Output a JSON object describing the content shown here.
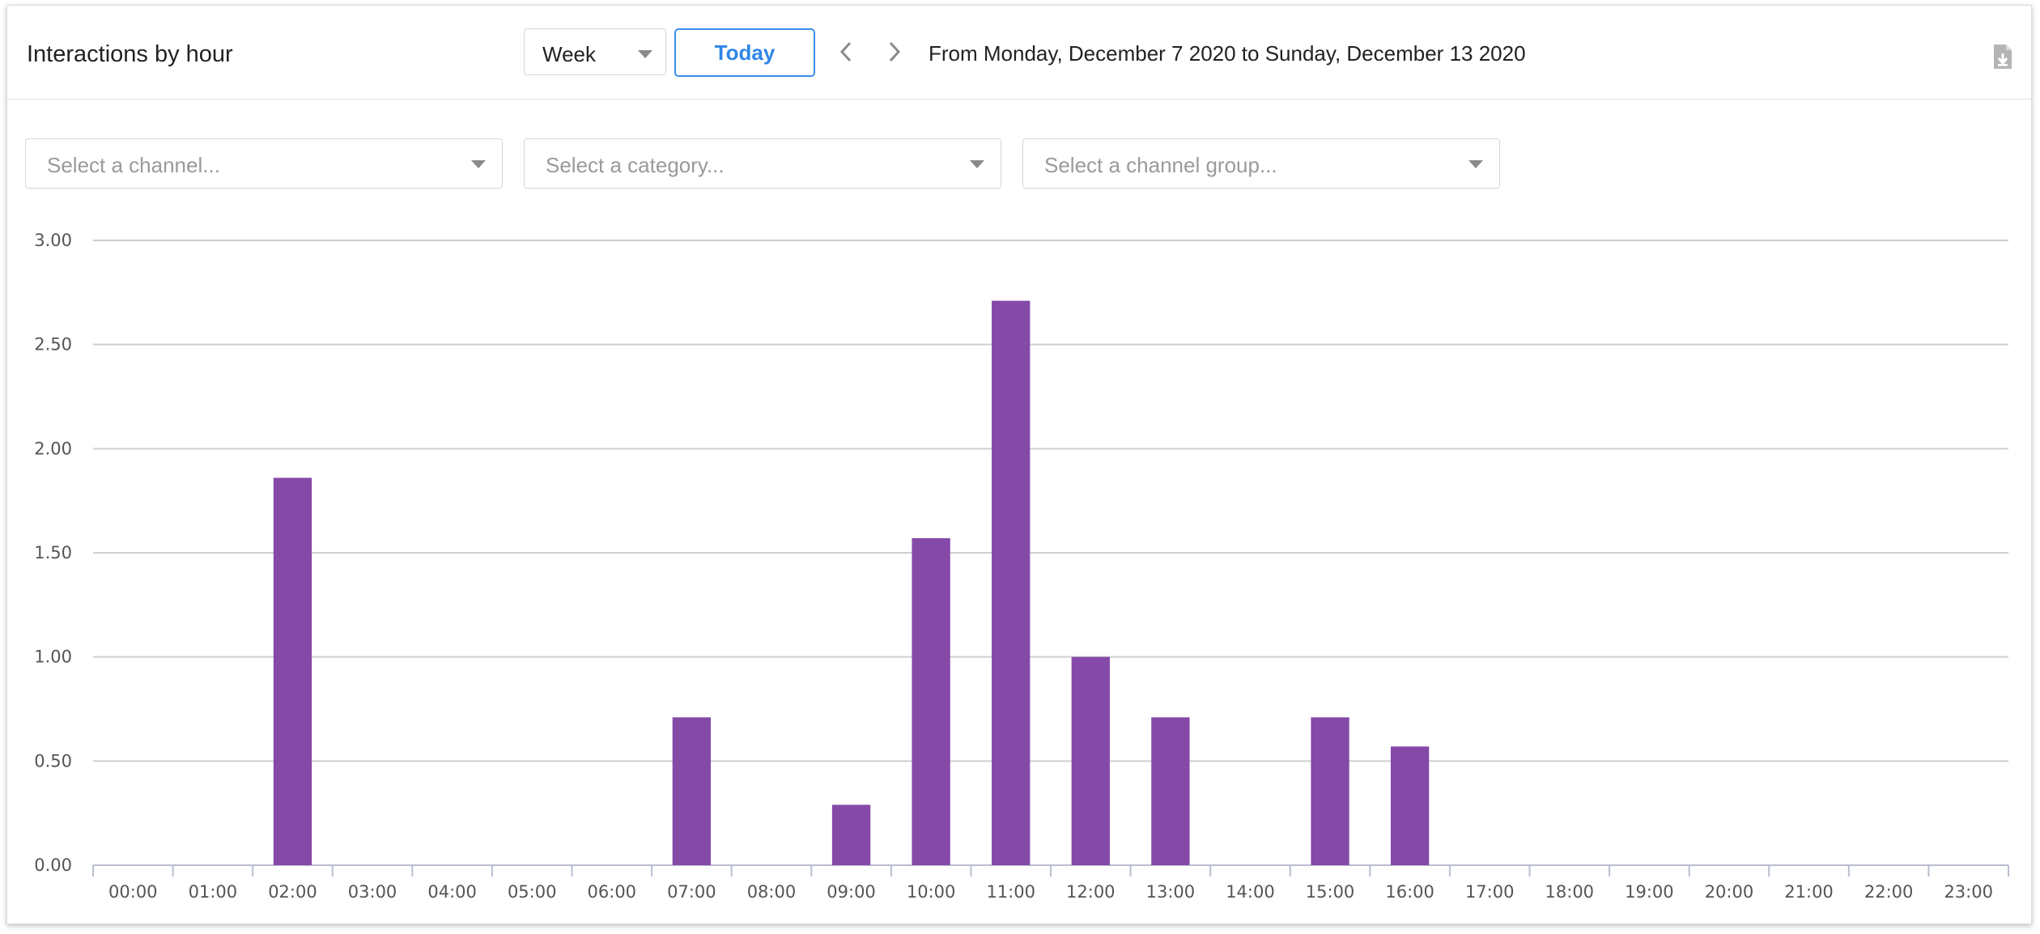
{
  "header": {
    "title": "Interactions by hour",
    "period_value": "Week",
    "today_label": "Today",
    "range_text": "From Monday, December 7 2020 to Sunday, December 13 2020",
    "icons": {
      "prev": "chevron-left-icon",
      "next": "chevron-right-icon",
      "export": "file-download-icon"
    }
  },
  "filters": {
    "channel_placeholder": "Select a channel...",
    "category_placeholder": "Select a category...",
    "channel_group_placeholder": "Select a channel group..."
  },
  "colors": {
    "bar": "#8549a8",
    "accent": "#2f86e6",
    "grid": "#cfcfcf"
  },
  "chart_data": {
    "type": "bar",
    "title": "",
    "xlabel": "",
    "ylabel": "",
    "ylim": [
      0,
      3
    ],
    "yticks": [
      "0.00",
      "0.50",
      "1.00",
      "1.50",
      "2.00",
      "2.50",
      "3.00"
    ],
    "grid": true,
    "categories": [
      "00:00",
      "01:00",
      "02:00",
      "03:00",
      "04:00",
      "05:00",
      "06:00",
      "07:00",
      "08:00",
      "09:00",
      "10:00",
      "11:00",
      "12:00",
      "13:00",
      "14:00",
      "15:00",
      "16:00",
      "17:00",
      "18:00",
      "19:00",
      "20:00",
      "21:00",
      "22:00",
      "23:00"
    ],
    "values": [
      0,
      0,
      1.86,
      0,
      0,
      0,
      0,
      0.71,
      0,
      0.29,
      1.57,
      2.71,
      1.0,
      0.71,
      0,
      0.71,
      0.57,
      0,
      0,
      0,
      0,
      0,
      0,
      0
    ]
  }
}
